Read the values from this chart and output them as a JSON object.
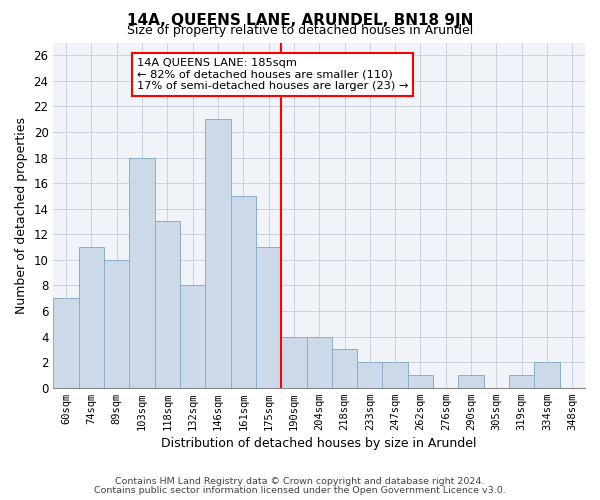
{
  "title": "14A, QUEENS LANE, ARUNDEL, BN18 9JN",
  "subtitle": "Size of property relative to detached houses in Arundel",
  "xlabel": "Distribution of detached houses by size in Arundel",
  "ylabel": "Number of detached properties",
  "bar_labels": [
    "60sqm",
    "74sqm",
    "89sqm",
    "103sqm",
    "118sqm",
    "132sqm",
    "146sqm",
    "161sqm",
    "175sqm",
    "190sqm",
    "204sqm",
    "218sqm",
    "233sqm",
    "247sqm",
    "262sqm",
    "276sqm",
    "290sqm",
    "305sqm",
    "319sqm",
    "334sqm",
    "348sqm"
  ],
  "bar_values": [
    7,
    11,
    10,
    18,
    13,
    8,
    21,
    15,
    11,
    4,
    4,
    3,
    2,
    2,
    1,
    0,
    1,
    0,
    1,
    2,
    0
  ],
  "bar_color": "#ccd9e8",
  "bar_edge_color": "#8aafc8",
  "vline_x_index": 9,
  "vline_color": "red",
  "ylim": [
    0,
    27
  ],
  "yticks": [
    0,
    2,
    4,
    6,
    8,
    10,
    12,
    14,
    16,
    18,
    20,
    22,
    24,
    26
  ],
  "annotation_title": "14A QUEENS LANE: 185sqm",
  "annotation_line1": "← 82% of detached houses are smaller (110)",
  "annotation_line2": "17% of semi-detached houses are larger (23) →",
  "annotation_box_edge": "red",
  "footer_line1": "Contains HM Land Registry data © Crown copyright and database right 2024.",
  "footer_line2": "Contains public sector information licensed under the Open Government Licence v3.0.",
  "grid_color": "#c8d4de",
  "background_color": "#ffffff",
  "plot_bg_color": "#f0f4f8"
}
